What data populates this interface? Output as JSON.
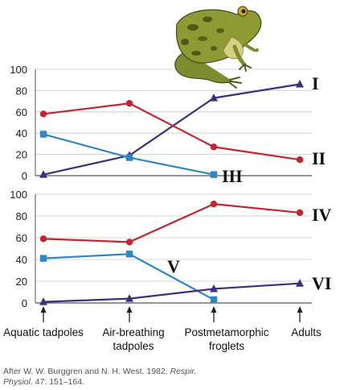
{
  "chart_data": [
    {
      "type": "line",
      "categories": [
        "Aquatic tadpoles",
        "Air-breathing tadpoles",
        "Postmetamorphic froglets",
        "Adults"
      ],
      "ylim": [
        0,
        100
      ],
      "yticks": [
        0,
        20,
        40,
        60,
        80,
        100
      ],
      "grid": true,
      "series": [
        {
          "name": "I",
          "color": "#3b2f7e",
          "marker": "triangle",
          "x": [
            0,
            1,
            2,
            3
          ],
          "values": [
            1,
            19,
            73,
            86
          ]
        },
        {
          "name": "II",
          "color": "#c0262f",
          "marker": "circle",
          "x": [
            0,
            1,
            2,
            3
          ],
          "values": [
            58,
            68,
            27,
            15
          ]
        },
        {
          "name": "III",
          "color": "#2f86c6",
          "marker": "square",
          "x": [
            0,
            1,
            2
          ],
          "values": [
            39,
            17,
            1
          ]
        }
      ]
    },
    {
      "type": "line",
      "categories": [
        "Aquatic tadpoles",
        "Air-breathing tadpoles",
        "Postmetamorphic froglets",
        "Adults"
      ],
      "ylim": [
        0,
        100
      ],
      "yticks": [
        0,
        20,
        40,
        60,
        80,
        100
      ],
      "grid": true,
      "series": [
        {
          "name": "IV",
          "color": "#c0262f",
          "marker": "circle",
          "x": [
            0,
            1,
            2,
            3
          ],
          "values": [
            59,
            56,
            91,
            83
          ]
        },
        {
          "name": "V",
          "color": "#2f86c6",
          "marker": "square",
          "x": [
            0,
            1,
            2
          ],
          "values": [
            41,
            45,
            3
          ]
        },
        {
          "name": "VI",
          "color": "#3b2f7e",
          "marker": "triangle",
          "x": [
            0,
            1,
            2,
            3
          ],
          "values": [
            1,
            4,
            13,
            18
          ]
        }
      ]
    }
  ],
  "categories_display": [
    [
      "Aquatic tadpoles"
    ],
    [
      "Air-breathing",
      "tadpoles"
    ],
    [
      "Postmetamorphic",
      "froglets"
    ],
    [
      "Adults"
    ]
  ],
  "caption": {
    "line1_prefix": "After W. W. Burggren and N. H. West. 1982. ",
    "line1_journal": "Respir.",
    "line2_journal": "Physiol.",
    "line2_suffix": " 47: 151–164."
  },
  "illustration": "frog-image"
}
